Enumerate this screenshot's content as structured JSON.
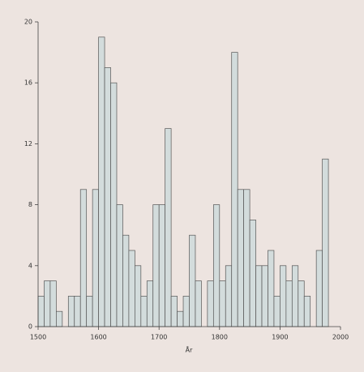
{
  "chart_data": {
    "type": "histogram",
    "x_label": "År",
    "bins": [
      1500,
      1510,
      1520,
      1530,
      1540,
      1550,
      1560,
      1570,
      1580,
      1590,
      1600,
      1610,
      1620,
      1630,
      1640,
      1650,
      1660,
      1670,
      1680,
      1690,
      1700,
      1710,
      1720,
      1730,
      1740,
      1750,
      1760,
      1770,
      1780,
      1790,
      1800,
      1810,
      1820,
      1830,
      1840,
      1850,
      1860,
      1870,
      1880,
      1890,
      1900,
      1910,
      1920,
      1930,
      1940,
      1950,
      1960,
      1970,
      1980
    ],
    "values": [
      2,
      3,
      3,
      1,
      0,
      2,
      2,
      9,
      2,
      9,
      19,
      17,
      16,
      8,
      6,
      5,
      4,
      2,
      3,
      8,
      8,
      13,
      2,
      1,
      2,
      6,
      3,
      0,
      3,
      8,
      3,
      4,
      18,
      9,
      9,
      7,
      4,
      4,
      5,
      2,
      4,
      3,
      4,
      3,
      2,
      0,
      5,
      11
    ],
    "color": "#d3dcdc",
    "xlim": [
      1500,
      2000
    ],
    "xticks": [
      1500,
      1600,
      1700,
      1800,
      1900,
      2000
    ],
    "ylim": [
      0,
      20
    ],
    "yticks": [
      0,
      4,
      8,
      12,
      16,
      20
    ]
  }
}
